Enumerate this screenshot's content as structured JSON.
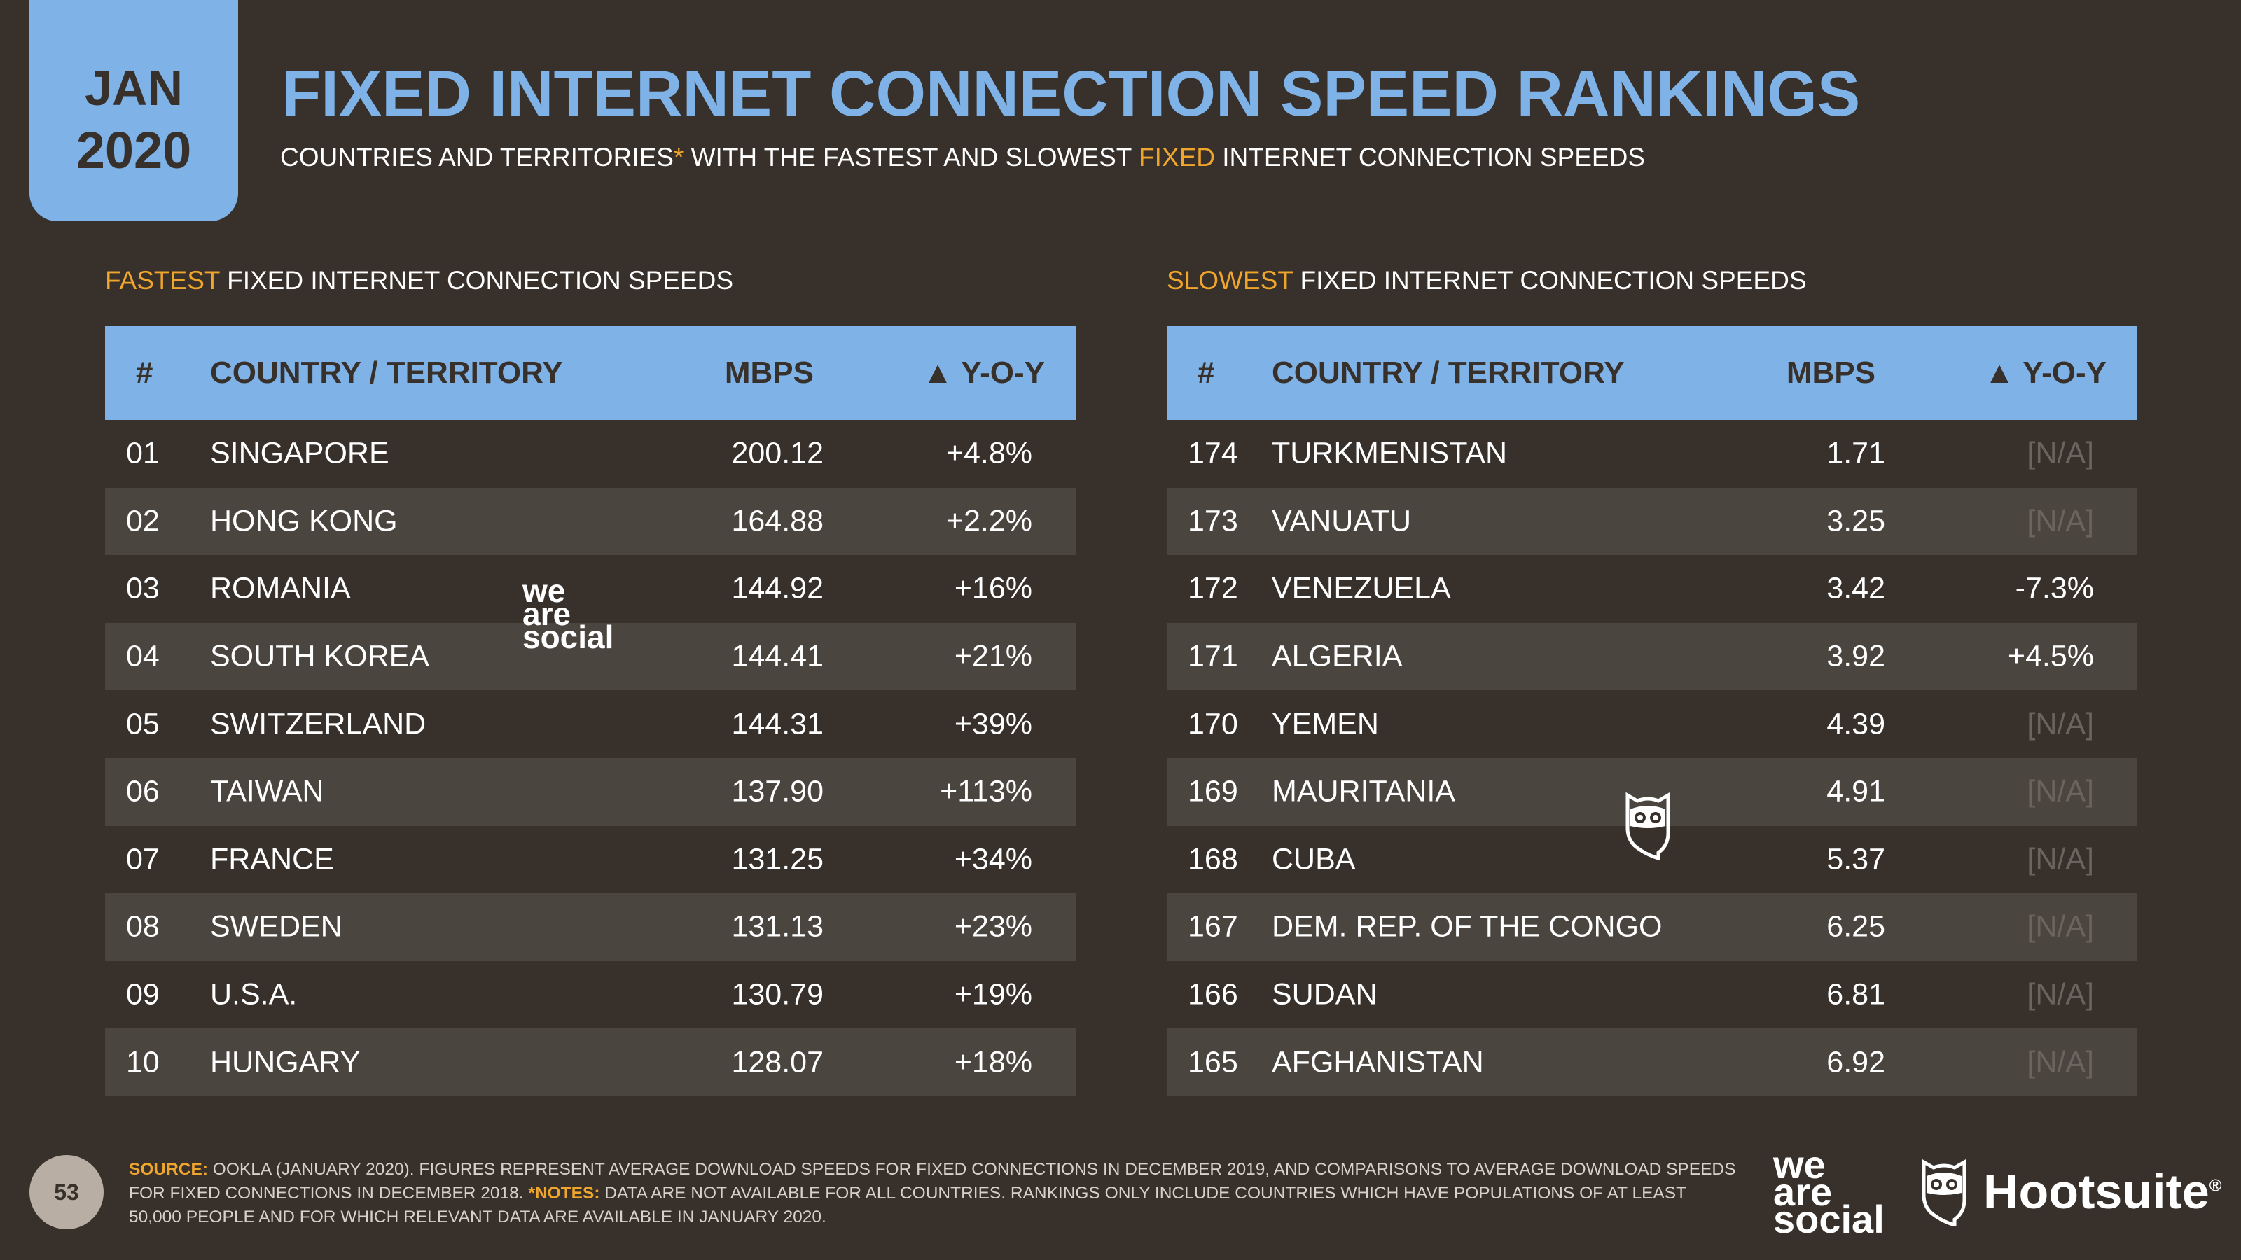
{
  "badge": {
    "month": "JAN",
    "year": "2020"
  },
  "header": {
    "title": "FIXED INTERNET CONNECTION SPEED RANKINGS",
    "subtitle_part1": "COUNTRIES AND TERRITORIES",
    "subtitle_star": "*",
    "subtitle_part2": " WITH THE FASTEST AND SLOWEST ",
    "subtitle_highlight": "FIXED",
    "subtitle_part3": " INTERNET CONNECTION SPEEDS"
  },
  "columns": {
    "rank": "#",
    "name": "COUNTRY / TERRITORY",
    "mbps": "MBPS",
    "yoy": "▲ Y-O-Y"
  },
  "fastest": {
    "label_highlight": "FASTEST",
    "label_rest": " FIXED INTERNET CONNECTION SPEEDS",
    "rows": [
      {
        "rank": "01",
        "name": "SINGAPORE",
        "mbps": "200.12",
        "yoy": "+4.8%"
      },
      {
        "rank": "02",
        "name": "HONG KONG",
        "mbps": "164.88",
        "yoy": "+2.2%"
      },
      {
        "rank": "03",
        "name": "ROMANIA",
        "mbps": "144.92",
        "yoy": "+16%"
      },
      {
        "rank": "04",
        "name": "SOUTH KOREA",
        "mbps": "144.41",
        "yoy": "+21%"
      },
      {
        "rank": "05",
        "name": "SWITZERLAND",
        "mbps": "144.31",
        "yoy": "+39%"
      },
      {
        "rank": "06",
        "name": "TAIWAN",
        "mbps": "137.90",
        "yoy": "+113%"
      },
      {
        "rank": "07",
        "name": "FRANCE",
        "mbps": "131.25",
        "yoy": "+34%"
      },
      {
        "rank": "08",
        "name": "SWEDEN",
        "mbps": "131.13",
        "yoy": "+23%"
      },
      {
        "rank": "09",
        "name": "U.S.A.",
        "mbps": "130.79",
        "yoy": "+19%"
      },
      {
        "rank": "10",
        "name": "HUNGARY",
        "mbps": "128.07",
        "yoy": "+18%"
      }
    ]
  },
  "slowest": {
    "label_highlight": "SLOWEST",
    "label_rest": " FIXED INTERNET CONNECTION SPEEDS",
    "rows": [
      {
        "rank": "174",
        "name": "TURKMENISTAN",
        "mbps": "1.71",
        "yoy": "[N/A]"
      },
      {
        "rank": "173",
        "name": "VANUATU",
        "mbps": "3.25",
        "yoy": "[N/A]"
      },
      {
        "rank": "172",
        "name": "VENEZUELA",
        "mbps": "3.42",
        "yoy": "-7.3%"
      },
      {
        "rank": "171",
        "name": "ALGERIA",
        "mbps": "3.92",
        "yoy": "+4.5%"
      },
      {
        "rank": "170",
        "name": "YEMEN",
        "mbps": "4.39",
        "yoy": "[N/A]"
      },
      {
        "rank": "169",
        "name": "MAURITANIA",
        "mbps": "4.91",
        "yoy": "[N/A]"
      },
      {
        "rank": "168",
        "name": "CUBA",
        "mbps": "5.37",
        "yoy": "[N/A]"
      },
      {
        "rank": "167",
        "name": "DEM. REP. OF THE CONGO",
        "mbps": "6.25",
        "yoy": "[N/A]"
      },
      {
        "rank": "166",
        "name": "SUDAN",
        "mbps": "6.81",
        "yoy": "[N/A]"
      },
      {
        "rank": "165",
        "name": "AFGHANISTAN",
        "mbps": "6.92",
        "yoy": "[N/A]"
      }
    ]
  },
  "footer": {
    "page_number": "53",
    "source_key": "SOURCE:",
    "source_text": " OOKLA (JANUARY 2020). FIGURES REPRESENT AVERAGE DOWNLOAD SPEEDS FOR FIXED CONNECTIONS IN DECEMBER 2019, AND COMPARISONS TO AVERAGE DOWNLOAD SPEEDS FOR FIXED CONNECTIONS IN DECEMBER 2018. ",
    "notes_key": "*NOTES:",
    "notes_text": " DATA ARE NOT AVAILABLE FOR ALL COUNTRIES. RANKINGS ONLY INCLUDE COUNTRIES WHICH HAVE POPULATIONS OF AT LEAST 50,000 PEOPLE AND FOR WHICH RELEVANT DATA ARE AVAILABLE IN JANUARY 2020."
  },
  "logos": {
    "we_are_social": [
      "we",
      "are",
      "social"
    ],
    "hootsuite": "Hootsuite",
    "hootsuite_mark": "®",
    "owl_icon": "hootsuite-owl-icon"
  },
  "colors": {
    "background": "#37302b",
    "accent_blue": "#7fb3e8",
    "accent_orange": "#f0a52c",
    "row_alt": "#4b4540",
    "na_text": "#6b645e"
  }
}
